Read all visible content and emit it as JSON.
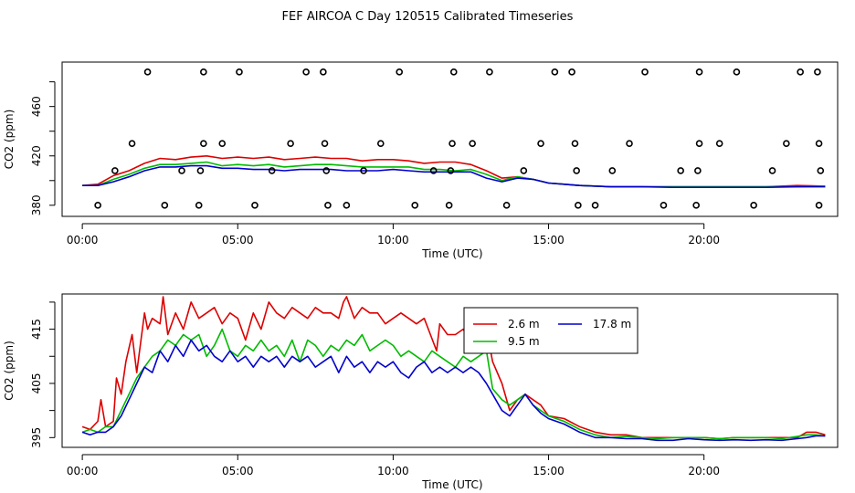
{
  "figure_title": "FEF AIRCOA C  Day 120515  Calibrated Timeseries",
  "colors": {
    "s1": "#dd0000",
    "s2": "#00bb00",
    "s3": "#0000cc",
    "marker": "#000000",
    "axis": "#000000"
  },
  "chart_data": [
    {
      "type": "line",
      "title": "",
      "xlabel": "Time (UTC)",
      "ylabel": "CO2 (ppm)",
      "xlim": [
        -0.65,
        24.3
      ],
      "ylim": [
        371,
        496
      ],
      "xticks": [
        0,
        5,
        10,
        15,
        20
      ],
      "xtick_labels": [
        "00:00",
        "05:00",
        "10:00",
        "15:00",
        "20:00"
      ],
      "yticks": [
        380,
        400,
        420,
        440,
        460,
        480
      ],
      "ytick_labels": [
        "380",
        "",
        "420",
        "",
        "460",
        ""
      ],
      "series": [
        {
          "name": "2.6 m",
          "color_key": "s1",
          "x": [
            0,
            0.5,
            1,
            1.5,
            2,
            2.5,
            3,
            3.5,
            4,
            4.5,
            5,
            5.5,
            6,
            6.5,
            7,
            7.5,
            8,
            8.5,
            9,
            9.5,
            10,
            10.5,
            11,
            11.5,
            12,
            12.5,
            13,
            13.5,
            14,
            14.5,
            15,
            15.5,
            16,
            17,
            18,
            19,
            20,
            21,
            22,
            23,
            23.9
          ],
          "y": [
            396,
            397,
            404,
            408,
            414,
            418,
            417,
            419,
            420,
            418,
            419,
            418,
            419,
            417,
            418,
            419,
            418,
            418,
            416,
            417,
            417,
            416,
            414,
            415,
            415,
            413,
            408,
            402,
            403,
            401,
            398,
            397,
            396,
            395,
            395,
            395,
            395,
            395,
            395,
            396,
            395.5
          ]
        },
        {
          "name": "9.5 m",
          "color_key": "s2",
          "x": [
            0,
            0.5,
            1,
            1.5,
            2,
            2.5,
            3,
            3.5,
            4,
            4.5,
            5,
            5.5,
            6,
            6.5,
            7,
            7.5,
            8,
            8.5,
            9,
            9.5,
            10,
            10.5,
            11,
            11.5,
            12,
            12.5,
            13,
            13.5,
            14,
            14.5,
            15,
            15.5,
            16,
            17,
            18,
            19,
            20,
            21,
            22,
            23,
            23.9
          ],
          "y": [
            396,
            396,
            401,
            405,
            410,
            413,
            413,
            414,
            415,
            412,
            413,
            412,
            413,
            411,
            412,
            413,
            413,
            412,
            411,
            411,
            411,
            411,
            409,
            409,
            408,
            409,
            405,
            400,
            403,
            401,
            398,
            397,
            396,
            395,
            395,
            395,
            395,
            395,
            395,
            395,
            395.5
          ]
        },
        {
          "name": "17.8 m",
          "color_key": "s3",
          "x": [
            0,
            0.5,
            1,
            1.5,
            2,
            2.5,
            3,
            3.5,
            4,
            4.5,
            5,
            5.5,
            6,
            6.5,
            7,
            7.5,
            8,
            8.5,
            9,
            9.5,
            10,
            10.5,
            11,
            11.5,
            12,
            12.5,
            13,
            13.5,
            14,
            14.5,
            15,
            15.5,
            16,
            17,
            18,
            19,
            20,
            21,
            22,
            23,
            23.9
          ],
          "y": [
            396,
            396,
            399,
            403,
            408,
            411,
            411,
            412,
            412,
            410,
            410,
            409,
            409,
            408,
            409,
            409,
            409,
            408,
            408,
            408,
            409,
            408,
            407,
            407,
            407,
            407,
            402,
            399,
            402,
            401,
            398,
            397,
            396,
            395,
            395,
            394.5,
            394.5,
            394.5,
            394.5,
            395,
            395
          ]
        }
      ],
      "markers": {
        "label": "circles",
        "x": [
          2.1,
          3.9,
          5.05,
          7.2,
          7.75,
          10.2,
          11.95,
          13.1,
          15.2,
          15.75,
          18.1,
          19.85,
          21.05,
          23.1,
          23.65,
          1.6,
          3.9,
          4.5,
          6.7,
          7.8,
          9.6,
          11.9,
          12.55,
          14.75,
          15.85,
          17.6,
          19.85,
          20.5,
          22.65,
          23.7,
          1.05,
          3.2,
          3.8,
          6.1,
          7.85,
          9.05,
          11.3,
          11.85,
          14.2,
          15.9,
          17.05,
          19.25,
          19.8,
          22.2,
          23.75,
          0.5,
          2.65,
          3.75,
          5.55,
          7.9,
          8.5,
          10.7,
          11.8,
          13.65,
          15.95,
          16.5,
          18.7,
          19.75,
          21.6,
          23.7
        ],
        "y": [
          488,
          488,
          488,
          488,
          488,
          488,
          488,
          488,
          488,
          488,
          488,
          488,
          488,
          488,
          488,
          430,
          430,
          430,
          430,
          430,
          430,
          430,
          430,
          430,
          430,
          430,
          430,
          430,
          430,
          430,
          408,
          408,
          408,
          408,
          408,
          408,
          408,
          408,
          408,
          408,
          408,
          408,
          408,
          408,
          408,
          380,
          380,
          380,
          380,
          380,
          380,
          380,
          380,
          380,
          380,
          380,
          380,
          380,
          380,
          380
        ]
      }
    },
    {
      "type": "line",
      "title": "",
      "xlabel": "Time (UTC)",
      "ylabel": "CO2 (ppm)",
      "xlim": [
        -0.65,
        24.3
      ],
      "ylim": [
        393.2,
        421.5
      ],
      "xticks": [
        0,
        5,
        10,
        15,
        20
      ],
      "xtick_labels": [
        "00:00",
        "05:00",
        "10:00",
        "15:00",
        "20:00"
      ],
      "yticks": [
        395,
        400,
        405,
        410,
        415,
        420
      ],
      "ytick_labels": [
        "395",
        "",
        "405",
        "",
        "415",
        ""
      ],
      "legend": {
        "placement": "top-right-inside",
        "entries": [
          "2.6 m",
          "17.8 m",
          "9.5 m"
        ]
      },
      "series": [
        {
          "name": "2.6 m",
          "color_key": "s1",
          "x": [
            0,
            0.25,
            0.5,
            0.6,
            0.75,
            1,
            1.1,
            1.25,
            1.4,
            1.6,
            1.75,
            2,
            2.1,
            2.25,
            2.5,
            2.6,
            2.75,
            3,
            3.25,
            3.5,
            3.75,
            4,
            4.25,
            4.5,
            4.75,
            5,
            5.25,
            5.5,
            5.75,
            6,
            6.25,
            6.5,
            6.75,
            7,
            7.25,
            7.5,
            7.75,
            8,
            8.25,
            8.4,
            8.5,
            8.75,
            9,
            9.25,
            9.5,
            9.75,
            10,
            10.25,
            10.5,
            10.75,
            11,
            11.2,
            11.4,
            11.5,
            11.75,
            12,
            12.25,
            12.5,
            12.75,
            13,
            13.2,
            13.5,
            13.75,
            14,
            14.25,
            14.5,
            14.75,
            15,
            15.5,
            16,
            16.5,
            17,
            17.5,
            18,
            18.5,
            19,
            19.5,
            20,
            20.5,
            21,
            21.5,
            22,
            22.5,
            23,
            23.3,
            23.6,
            23.9
          ],
          "y": [
            397,
            396.5,
            398,
            402,
            397,
            398,
            406,
            403,
            409,
            414,
            407,
            418,
            415,
            417,
            416,
            421,
            414,
            418,
            415,
            420,
            417,
            418,
            419,
            416,
            418,
            417,
            413,
            418,
            415,
            420,
            418,
            417,
            419,
            418,
            417,
            419,
            418,
            418,
            417,
            420,
            421,
            417,
            419,
            418,
            418,
            416,
            417,
            418,
            417,
            416,
            417,
            414,
            411,
            416,
            414,
            414,
            415,
            413,
            414,
            415,
            409,
            405,
            400,
            402,
            403,
            402,
            401,
            399,
            398.5,
            397,
            396,
            395.5,
            395.5,
            395,
            395,
            395,
            395,
            395,
            394.8,
            395,
            395,
            395,
            395,
            395,
            396,
            396,
            395.5
          ]
        },
        {
          "name": "9.5 m",
          "color_key": "s2",
          "x": [
            0,
            0.25,
            0.5,
            0.75,
            1,
            1.25,
            1.5,
            1.75,
            2,
            2.25,
            2.5,
            2.75,
            3,
            3.25,
            3.5,
            3.75,
            4,
            4.25,
            4.5,
            4.75,
            5,
            5.25,
            5.5,
            5.75,
            6,
            6.25,
            6.5,
            6.75,
            7,
            7.25,
            7.5,
            7.75,
            8,
            8.25,
            8.5,
            8.75,
            9,
            9.25,
            9.5,
            9.75,
            10,
            10.25,
            10.5,
            10.75,
            11,
            11.25,
            11.5,
            11.75,
            12,
            12.25,
            12.5,
            12.75,
            13,
            13.2,
            13.5,
            13.75,
            14,
            14.25,
            14.5,
            14.75,
            15,
            15.5,
            16,
            16.5,
            17,
            17.5,
            18,
            18.5,
            19,
            19.5,
            20,
            20.5,
            21,
            21.5,
            22,
            22.5,
            23,
            23.3,
            23.6,
            23.9
          ],
          "y": [
            396,
            396.5,
            396,
            397,
            397,
            400,
            403,
            406,
            408,
            410,
            411,
            413,
            412,
            414,
            413,
            414,
            410,
            412,
            415,
            411,
            410,
            412,
            411,
            413,
            411,
            412,
            410,
            413,
            409,
            413,
            412,
            410,
            412,
            411,
            413,
            412,
            414,
            411,
            412,
            413,
            412,
            410,
            411,
            410,
            409,
            411,
            410,
            409,
            408,
            410,
            409,
            410,
            411,
            404,
            402,
            401,
            402,
            403,
            401,
            400,
            399,
            398,
            396.5,
            395.5,
            395,
            395.2,
            395,
            394.8,
            395,
            395,
            395,
            394.8,
            395,
            395,
            395,
            394.8,
            395.2,
            395.5,
            395.5,
            395.3
          ]
        },
        {
          "name": "17.8 m",
          "color_key": "s3",
          "x": [
            0,
            0.25,
            0.5,
            0.75,
            1,
            1.25,
            1.5,
            1.75,
            2,
            2.25,
            2.5,
            2.75,
            3,
            3.25,
            3.5,
            3.75,
            4,
            4.25,
            4.5,
            4.75,
            5,
            5.25,
            5.5,
            5.75,
            6,
            6.25,
            6.5,
            6.75,
            7,
            7.25,
            7.5,
            7.75,
            8,
            8.25,
            8.5,
            8.75,
            9,
            9.25,
            9.5,
            9.75,
            10,
            10.25,
            10.5,
            10.75,
            11,
            11.25,
            11.5,
            11.75,
            12,
            12.25,
            12.5,
            12.75,
            13,
            13.2,
            13.5,
            13.75,
            14,
            14.25,
            14.5,
            14.75,
            15,
            15.5,
            16,
            16.5,
            17,
            17.5,
            18,
            18.5,
            19,
            19.5,
            20,
            20.5,
            21,
            21.5,
            22,
            22.5,
            23,
            23.3,
            23.6,
            23.9
          ],
          "y": [
            396,
            395.5,
            396,
            396,
            397,
            399,
            402,
            405,
            408,
            407,
            411,
            409,
            412,
            410,
            413,
            411,
            412,
            410,
            409,
            411,
            409,
            410,
            408,
            410,
            409,
            410,
            408,
            410,
            409,
            410,
            408,
            409,
            410,
            407,
            410,
            408,
            409,
            407,
            409,
            408,
            409,
            407,
            406,
            408,
            409,
            407,
            408,
            407,
            408,
            407,
            408,
            407,
            405,
            403,
            400,
            399,
            401,
            403,
            401,
            399.5,
            398.5,
            397.5,
            396,
            395,
            395,
            394.8,
            394.8,
            394.5,
            394.5,
            394.8,
            394.6,
            394.5,
            394.6,
            394.5,
            394.6,
            394.5,
            394.8,
            395,
            395.3,
            395.3
          ]
        }
      ]
    }
  ]
}
